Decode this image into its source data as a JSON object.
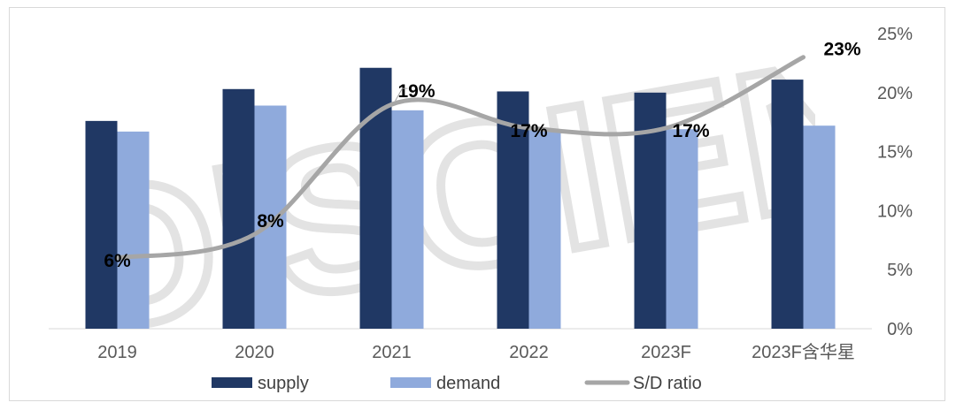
{
  "chart_data": {
    "type": "bar",
    "categories": [
      "2019",
      "2020",
      "2021",
      "2022",
      "2023F",
      "2023F含华星"
    ],
    "series": [
      {
        "name": "supply",
        "kind": "bar",
        "color": "#203864",
        "values": [
          17.6,
          20.3,
          22.1,
          20.1,
          20.0,
          21.1
        ]
      },
      {
        "name": "demand",
        "kind": "bar",
        "color": "#8faadc",
        "values": [
          16.7,
          18.9,
          18.5,
          16.9,
          16.9,
          17.2
        ]
      },
      {
        "name": "S/D ratio",
        "kind": "line",
        "color": "#a6a6a6",
        "values": [
          6,
          8,
          19,
          17,
          17,
          23
        ],
        "labels": [
          "6%",
          "8%",
          "19%",
          "17%",
          "17%",
          "23%"
        ]
      }
    ],
    "yaxis": {
      "min": 0,
      "max": 25,
      "step": 5,
      "ticks": [
        "0%",
        "5%",
        "10%",
        "15%",
        "20%",
        "25%"
      ],
      "position": "right"
    },
    "legend": {
      "position": "bottom",
      "entries": [
        "supply",
        "demand",
        "S/D ratio"
      ]
    },
    "grid": false
  },
  "watermark": {
    "text": "DISCIEN"
  }
}
